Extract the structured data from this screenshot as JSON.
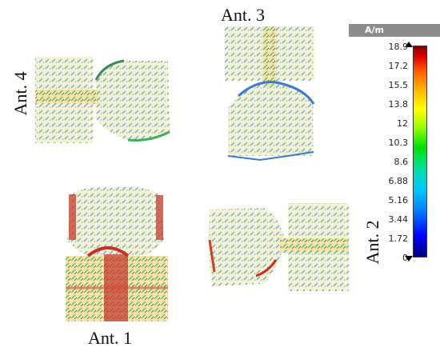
{
  "labels": {
    "ant1": "Ant. 1",
    "ant2": "Ant. 2",
    "ant3": "Ant. 3",
    "ant4": "Ant. 4"
  },
  "colorbar": {
    "unit": "A/m",
    "ticks": [
      "18.9",
      "17.2",
      "15.5",
      "13.8",
      "12",
      "10.3",
      "8.6",
      "6.88",
      "5.16",
      "3.44",
      "1.72",
      "0"
    ]
  },
  "colors": {
    "patch": "#f7f4cc",
    "low_current": "#3c78d8",
    "mid_current": "#38c070",
    "high_current": "#d83020"
  }
}
